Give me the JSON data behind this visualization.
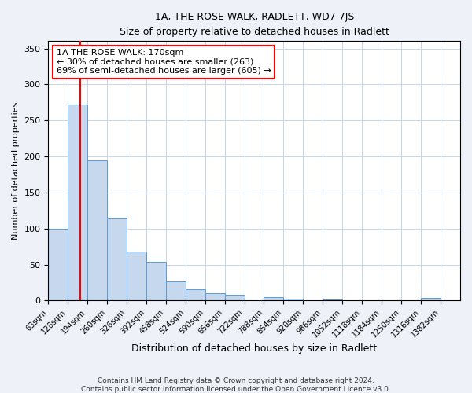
{
  "title": "1A, THE ROSE WALK, RADLETT, WD7 7JS",
  "subtitle": "Size of property relative to detached houses in Radlett",
  "xlabel": "Distribution of detached houses by size in Radlett",
  "ylabel": "Number of detached properties",
  "bin_labels": [
    "63sqm",
    "128sqm",
    "194sqm",
    "260sqm",
    "326sqm",
    "392sqm",
    "458sqm",
    "524sqm",
    "590sqm",
    "656sqm",
    "722sqm",
    "788sqm",
    "854sqm",
    "920sqm",
    "986sqm",
    "1052sqm",
    "1118sqm",
    "1184sqm",
    "1250sqm",
    "1316sqm",
    "1382sqm"
  ],
  "bin_edges": [
    63,
    128,
    194,
    260,
    326,
    392,
    458,
    524,
    590,
    656,
    722,
    788,
    854,
    920,
    986,
    1052,
    1118,
    1184,
    1250,
    1316,
    1382
  ],
  "bin_width": 66,
  "bar_heights": [
    100,
    272,
    195,
    115,
    68,
    54,
    27,
    16,
    10,
    8,
    0,
    5,
    3,
    0,
    2,
    1,
    1,
    0,
    0,
    4,
    0
  ],
  "bar_color": "#c5d8ed",
  "bar_edge_color": "#5b9bd5",
  "vline_x": 170,
  "vline_color": "red",
  "ylim": [
    0,
    360
  ],
  "yticks": [
    0,
    50,
    100,
    150,
    200,
    250,
    300,
    350
  ],
  "annotation_title": "1A THE ROSE WALK: 170sqm",
  "annotation_line1": "← 30% of detached houses are smaller (263)",
  "annotation_line2": "69% of semi-detached houses are larger (605) →",
  "annotation_box_color": "white",
  "annotation_box_edge_color": "red",
  "footer_line1": "Contains HM Land Registry data © Crown copyright and database right 2024.",
  "footer_line2": "Contains public sector information licensed under the Open Government Licence v3.0.",
  "bg_color": "#eef2f8",
  "plot_bg_color": "white",
  "grid_color": "#c8d4e8"
}
